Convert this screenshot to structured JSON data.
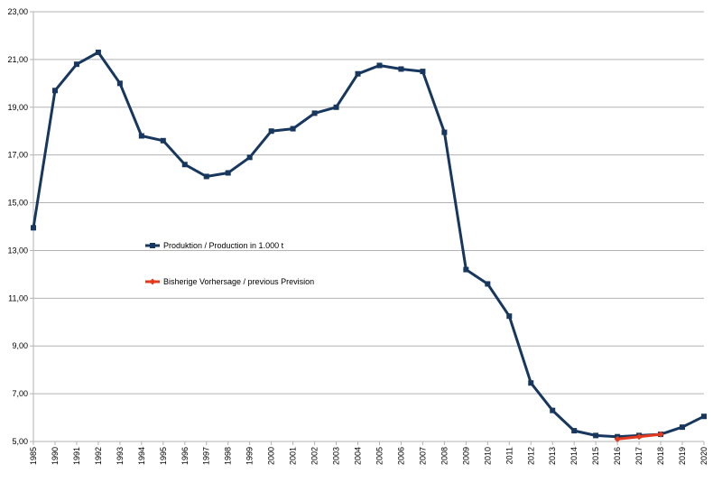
{
  "chart_data": {
    "type": "line",
    "title": "",
    "xlabel": "",
    "ylabel": "",
    "ylim": [
      5,
      23
    ],
    "grid": true,
    "legend_position": "left-middle",
    "y_ticks": [
      "5,00",
      "7,00",
      "9,00",
      "11,00",
      "13,00",
      "15,00",
      "17,00",
      "19,00",
      "21,00",
      "23,00"
    ],
    "categories": [
      "1985",
      "1990",
      "1991",
      "1992",
      "1993",
      "1994",
      "1995",
      "1996",
      "1997",
      "1998",
      "1999",
      "2000",
      "2001",
      "2002",
      "2003",
      "2004",
      "2005",
      "2006",
      "2007",
      "2008",
      "2009",
      "2010",
      "2011",
      "2012",
      "2013",
      "2014",
      "2015",
      "2016",
      "2017",
      "2018",
      "2019",
      "2020"
    ],
    "series": [
      {
        "name": "Produktion / Production in 1.000 t",
        "color": "#17375e",
        "marker": "square",
        "values": [
          13.95,
          19.7,
          20.8,
          21.3,
          20.0,
          17.8,
          17.6,
          16.6,
          16.1,
          16.25,
          16.9,
          18.0,
          18.1,
          18.75,
          19.0,
          20.4,
          20.75,
          20.6,
          20.5,
          17.95,
          12.2,
          11.6,
          10.25,
          7.45,
          6.3,
          5.45,
          5.25,
          5.2,
          5.25,
          5.3,
          5.6,
          6.05
        ]
      },
      {
        "name": "Bisherige Vorhersage / previous Prevision",
        "color": "#e33a1f",
        "marker": "diamond",
        "values": [
          null,
          null,
          null,
          null,
          null,
          null,
          null,
          null,
          null,
          null,
          null,
          null,
          null,
          null,
          null,
          null,
          null,
          null,
          null,
          null,
          null,
          null,
          null,
          null,
          null,
          null,
          null,
          5.1,
          5.2,
          5.3,
          null,
          null
        ]
      }
    ]
  }
}
